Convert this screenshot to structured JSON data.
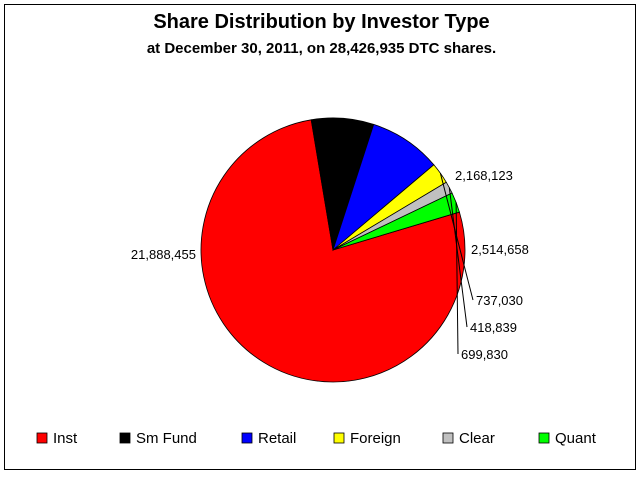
{
  "chart_data": {
    "type": "pie",
    "title": "Share Distribution by Investor Type",
    "subtitle": "at December 30, 2011, on 28,426,935 DTC shares.",
    "slices": [
      {
        "name": "Inst",
        "value": 21888455,
        "label": "21,888,455",
        "color": "#ff0000"
      },
      {
        "name": "Sm Fund",
        "value": 2168123,
        "label": "2,168,123",
        "color": "#000000"
      },
      {
        "name": "Retail",
        "value": 2514658,
        "label": "2,514,658",
        "color": "#0000ff"
      },
      {
        "name": "Foreign",
        "value": 737030,
        "label": "737,030",
        "color": "#ffff00"
      },
      {
        "name": "Clear",
        "value": 418839,
        "label": "418,839",
        "color": "#c0c0c0"
      },
      {
        "name": "Quant",
        "value": 699830,
        "label": "699,830",
        "color": "#00ff00"
      }
    ],
    "legend_position": "bottom"
  }
}
